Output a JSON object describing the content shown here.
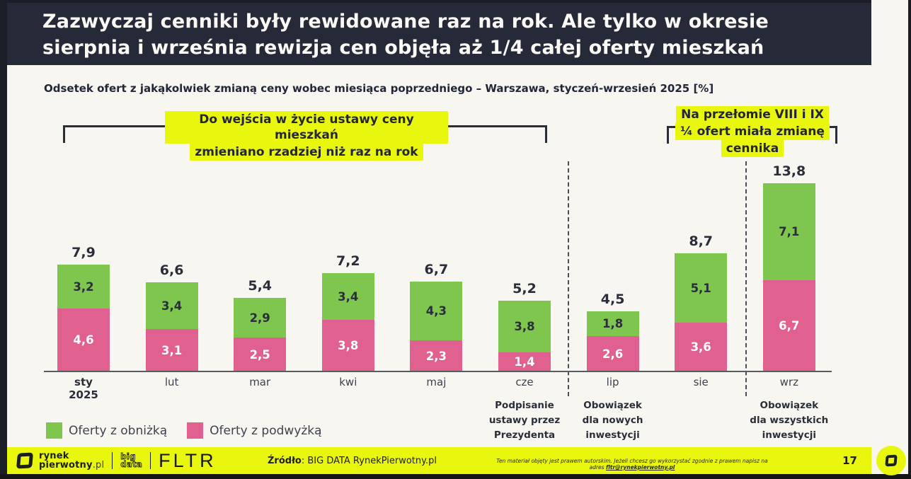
{
  "header": {
    "title_line1": "Zazwyczaj cenniki były rewidowane raz na rok. Ale tylko w okresie",
    "title_line2": "sierpnia i września rewizja cen objęła aż 1/4 całej oferty mieszkań"
  },
  "subtitle": "Odsetek ofert z jakąkolwiek zmianą ceny wobec miesiąca poprzedniego – Warszawa, styczeń-wrzesień 2025 [%]",
  "annotations": {
    "left": {
      "line1": "Do wejścia w życie ustawy ceny mieszkań",
      "line2": "zmieniano rzadziej niż raz na rok"
    },
    "right": {
      "line1": "Na przełomie VIII i IX",
      "line2": "¼ ofert miała zmianę",
      "line3": "cennika"
    }
  },
  "chart_data": {
    "type": "bar",
    "stacked": true,
    "title": "Odsetek ofert z jakąkolwiek zmianą ceny wobec miesiąca poprzedniego – Warszawa, styczeń-wrzesień 2025 [%]",
    "categories": [
      "sty",
      "lut",
      "mar",
      "kwi",
      "maj",
      "cze",
      "lip",
      "sie",
      "wrz"
    ],
    "x_sub_label": {
      "category_index": 0,
      "text": "2025"
    },
    "series": [
      {
        "name": "Oferty z obniżką",
        "color": "#7ec64e",
        "values": [
          3.2,
          3.4,
          2.9,
          3.4,
          4.3,
          3.8,
          1.8,
          5.1,
          7.1
        ]
      },
      {
        "name": "Oferty z podwyżką",
        "color": "#e0608f",
        "values": [
          4.6,
          3.1,
          2.5,
          3.8,
          2.3,
          1.4,
          2.6,
          3.6,
          6.7
        ]
      }
    ],
    "totals": [
      7.9,
      6.6,
      5.4,
      7.2,
      6.7,
      5.2,
      4.5,
      8.7,
      13.8
    ],
    "ylim": [
      0,
      15
    ],
    "grid": false,
    "legend_position": "bottom-left",
    "value_format": "comma-decimal",
    "separators_after": [
      "cze",
      "sie"
    ]
  },
  "milestones": [
    {
      "under": "cze",
      "lines": [
        "Podpisanie",
        "ustawy przez",
        "Prezydenta"
      ]
    },
    {
      "under": "lip",
      "lines": [
        "Obowiązek",
        "dla nowych",
        "inwestycji"
      ]
    },
    {
      "under": "wrz",
      "lines": [
        "Obowiązek",
        "dla wszystkich",
        "inwestycji"
      ]
    }
  ],
  "footer": {
    "logo_rynek_line1": "rynek",
    "logo_rynek_line2": "pierwotny",
    "logo_rynek_suffix": ".pl",
    "logo_big": "big",
    "logo_data": "data",
    "logo_fltr": "FLTR",
    "source_label": "Źródło",
    "source_rest": ": BIG DATA RynekPierwotny.pl",
    "disclaimer_text": "Ten materiał objęty jest prawem autorskim. Jeżeli chcesz go wykorzystać zgodnie z prawem napisz na adres ",
    "disclaimer_link": "fltr@rynekpierwotny.pl",
    "page_number": "17"
  },
  "colors": {
    "header_bg": "#262938",
    "highlight_yellow": "#e9f70e",
    "decrease_green": "#7ec64e",
    "increase_pink": "#e0608f",
    "background": "#f7f6f1"
  }
}
